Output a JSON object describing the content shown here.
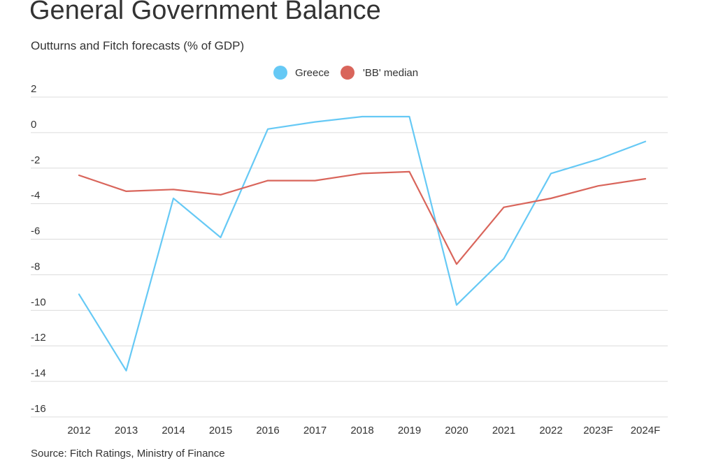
{
  "title": "General Government Balance",
  "subtitle": "Outturns and Fitch forecasts (% of GDP)",
  "source": "Source: Fitch Ratings, Ministry of Finance",
  "chart_data": {
    "type": "line",
    "categories": [
      "2012",
      "2013",
      "2014",
      "2015",
      "2016",
      "2017",
      "2018",
      "2019",
      "2020",
      "2021",
      "2022",
      "2023F",
      "2024F"
    ],
    "series": [
      {
        "name": "Greece",
        "color": "#66c9f5",
        "values": [
          -9.1,
          -13.4,
          -3.7,
          -5.9,
          0.2,
          0.6,
          0.9,
          0.9,
          -9.7,
          -7.1,
          -2.3,
          -1.5,
          -0.5
        ]
      },
      {
        "name": "'BB' median",
        "color": "#d9655b",
        "values": [
          -2.4,
          -3.3,
          -3.2,
          -3.5,
          -2.7,
          -2.7,
          -2.3,
          -2.2,
          -7.4,
          -4.2,
          -3.7,
          -3.0,
          -2.6
        ]
      }
    ],
    "ylim": [
      -16,
      2
    ],
    "yticks": [
      "2",
      "0",
      "-2",
      "-4",
      "-6",
      "-8",
      "-10",
      "-12",
      "-14",
      "-16"
    ],
    "xlabel": "",
    "ylabel": "",
    "grid": true,
    "legend_position": "top-center"
  }
}
